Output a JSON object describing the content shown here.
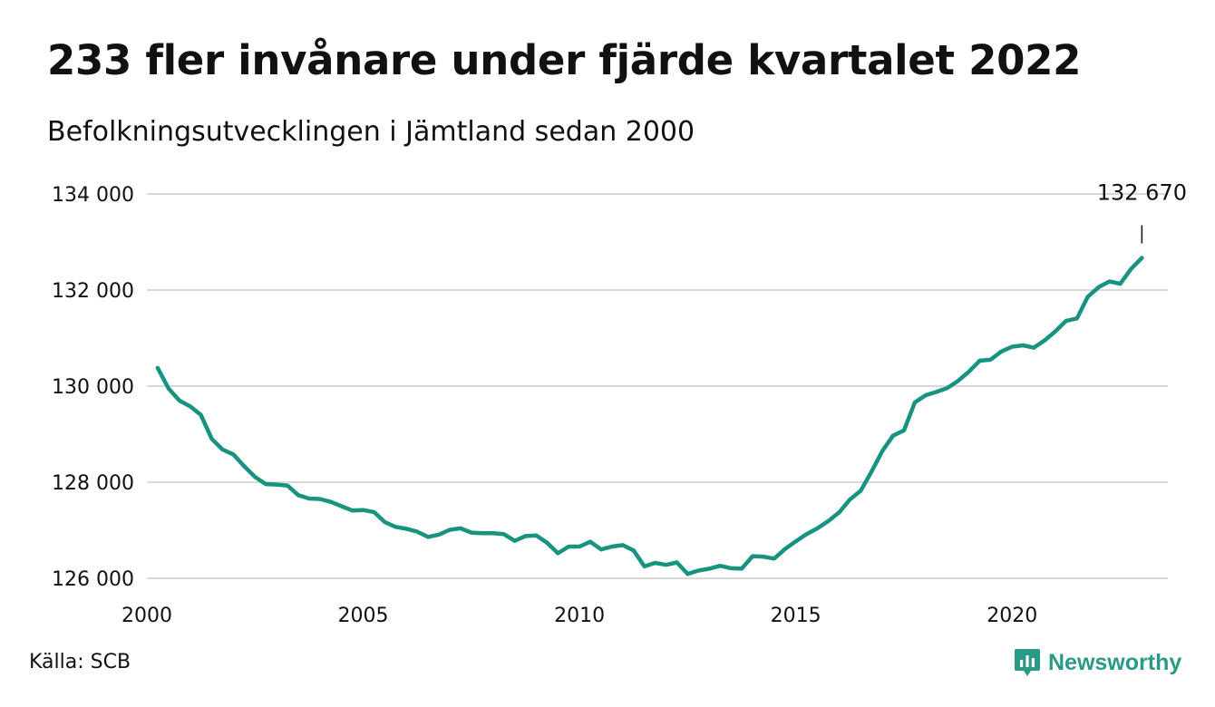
{
  "title": "233 fler invånare under fjärde kvartalet 2022",
  "subtitle": "Befolkningsutvecklingen i Jämtland sedan 2000",
  "source": "Källa: SCB",
  "brand": "Newsworthy",
  "colors": {
    "line": "#17937f",
    "grid": "#d9d9d9",
    "brand": "#2a9a86"
  },
  "chart_data": {
    "type": "line",
    "title": "233 fler invånare under fjärde kvartalet 2022",
    "xlabel": "",
    "ylabel": "",
    "xlim": [
      2000,
      2023.6
    ],
    "ylim": [
      126000,
      134000
    ],
    "xticks": [
      {
        "value": 2000,
        "label": "2000"
      },
      {
        "value": 2005,
        "label": "2005"
      },
      {
        "value": 2010,
        "label": "2010"
      },
      {
        "value": 2015,
        "label": "2015"
      },
      {
        "value": 2020,
        "label": "2020"
      }
    ],
    "yticks": [
      {
        "value": 126000,
        "label": "126 000"
      },
      {
        "value": 128000,
        "label": "128 000"
      },
      {
        "value": 130000,
        "label": "130 000"
      },
      {
        "value": 132000,
        "label": "132 000"
      },
      {
        "value": 134000,
        "label": "134 000"
      }
    ],
    "grid": true,
    "legend": "none",
    "annotation": {
      "x": 2023.0,
      "y": 132670,
      "label": "132 670"
    },
    "series": [
      {
        "points": [
          [
            2000.25,
            130380
          ],
          [
            2000.5,
            129950
          ],
          [
            2000.75,
            129700
          ],
          [
            2001.0,
            129580
          ],
          [
            2001.25,
            129400
          ],
          [
            2001.5,
            128900
          ],
          [
            2001.75,
            128680
          ],
          [
            2002.0,
            128580
          ],
          [
            2002.25,
            128330
          ],
          [
            2002.5,
            128110
          ],
          [
            2002.75,
            127960
          ],
          [
            2003.0,
            127950
          ],
          [
            2003.25,
            127930
          ],
          [
            2003.5,
            127730
          ],
          [
            2003.75,
            127660
          ],
          [
            2004.0,
            127650
          ],
          [
            2004.25,
            127590
          ],
          [
            2004.5,
            127500
          ],
          [
            2004.75,
            127410
          ],
          [
            2005.0,
            127420
          ],
          [
            2005.25,
            127380
          ],
          [
            2005.5,
            127170
          ],
          [
            2005.75,
            127070
          ],
          [
            2006.0,
            127030
          ],
          [
            2006.25,
            126970
          ],
          [
            2006.5,
            126860
          ],
          [
            2006.75,
            126910
          ],
          [
            2007.0,
            127010
          ],
          [
            2007.25,
            127040
          ],
          [
            2007.5,
            126950
          ],
          [
            2007.75,
            126940
          ],
          [
            2008.0,
            126940
          ],
          [
            2008.25,
            126920
          ],
          [
            2008.5,
            126780
          ],
          [
            2008.75,
            126880
          ],
          [
            2009.0,
            126890
          ],
          [
            2009.25,
            126740
          ],
          [
            2009.5,
            126520
          ],
          [
            2009.75,
            126660
          ],
          [
            2010.0,
            126660
          ],
          [
            2010.25,
            126760
          ],
          [
            2010.5,
            126600
          ],
          [
            2010.75,
            126660
          ],
          [
            2011.0,
            126690
          ],
          [
            2011.25,
            126580
          ],
          [
            2011.5,
            126250
          ],
          [
            2011.75,
            126320
          ],
          [
            2012.0,
            126280
          ],
          [
            2012.25,
            126330
          ],
          [
            2012.5,
            126090
          ],
          [
            2012.75,
            126160
          ],
          [
            2013.0,
            126200
          ],
          [
            2013.25,
            126260
          ],
          [
            2013.5,
            126210
          ],
          [
            2013.75,
            126200
          ],
          [
            2014.0,
            126460
          ],
          [
            2014.25,
            126450
          ],
          [
            2014.5,
            126410
          ],
          [
            2014.75,
            126610
          ],
          [
            2015.0,
            126770
          ],
          [
            2015.25,
            126920
          ],
          [
            2015.5,
            127040
          ],
          [
            2015.75,
            127190
          ],
          [
            2016.0,
            127370
          ],
          [
            2016.25,
            127640
          ],
          [
            2016.5,
            127820
          ],
          [
            2016.75,
            128220
          ],
          [
            2017.0,
            128650
          ],
          [
            2017.25,
            128970
          ],
          [
            2017.5,
            129080
          ],
          [
            2017.75,
            129660
          ],
          [
            2018.0,
            129810
          ],
          [
            2018.25,
            129880
          ],
          [
            2018.5,
            129960
          ],
          [
            2018.75,
            130110
          ],
          [
            2019.0,
            130300
          ],
          [
            2019.25,
            130530
          ],
          [
            2019.5,
            130550
          ],
          [
            2019.75,
            130720
          ],
          [
            2020.0,
            130820
          ],
          [
            2020.25,
            130850
          ],
          [
            2020.5,
            130800
          ],
          [
            2020.75,
            130950
          ],
          [
            2021.0,
            131140
          ],
          [
            2021.25,
            131360
          ],
          [
            2021.5,
            131410
          ],
          [
            2021.75,
            131860
          ],
          [
            2022.0,
            132060
          ],
          [
            2022.25,
            132180
          ],
          [
            2022.5,
            132130
          ],
          [
            2022.75,
            132440
          ],
          [
            2023.0,
            132670
          ]
        ]
      }
    ]
  }
}
